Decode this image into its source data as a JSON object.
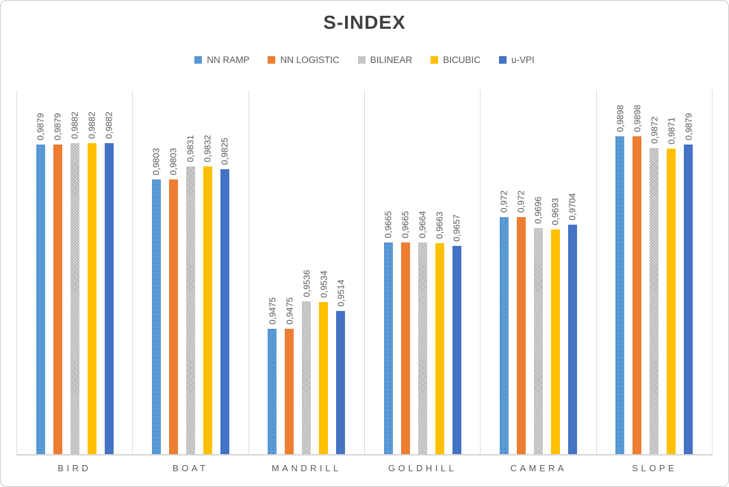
{
  "chart_data": {
    "type": "bar",
    "title": "S-INDEX",
    "categories": [
      "BIRD",
      "BOAT",
      "MANDRILL",
      "GOLDHILL",
      "CAMERA",
      "SLOPE"
    ],
    "series": [
      {
        "name": "NN RAMP",
        "color": "#5b9bd5",
        "pattern": "dots",
        "values": [
          0.9879,
          0.9803,
          0.9475,
          0.9665,
          0.972,
          0.9898
        ]
      },
      {
        "name": "NN LOGISTIC",
        "color": "#ed7d31",
        "pattern": "solid",
        "values": [
          0.9879,
          0.9803,
          0.9475,
          0.9665,
          0.972,
          0.9898
        ]
      },
      {
        "name": "BILINEAR",
        "color": "#aeaeae",
        "pattern": "hatch",
        "values": [
          0.9882,
          0.9831,
          0.9536,
          0.9664,
          0.9696,
          0.9872
        ]
      },
      {
        "name": "BICUBIC",
        "color": "#ffc000",
        "pattern": "solid",
        "values": [
          0.9882,
          0.9832,
          0.9534,
          0.9663,
          0.9693,
          0.9871
        ]
      },
      {
        "name": "u-VPI",
        "color": "#4472c4",
        "pattern": "solid",
        "values": [
          0.9882,
          0.9825,
          0.9514,
          0.9657,
          0.9704,
          0.9879
        ]
      }
    ],
    "data_labels": {
      "decimal_separator": ",",
      "rotation": "vertical",
      "color": "#595959"
    },
    "value_axis": {
      "min": 0.92,
      "max": 1.0,
      "visible": false
    },
    "legend_position": "top",
    "gridlines": {
      "vertical": true,
      "horizontal": false
    },
    "title_color": "#404040"
  }
}
